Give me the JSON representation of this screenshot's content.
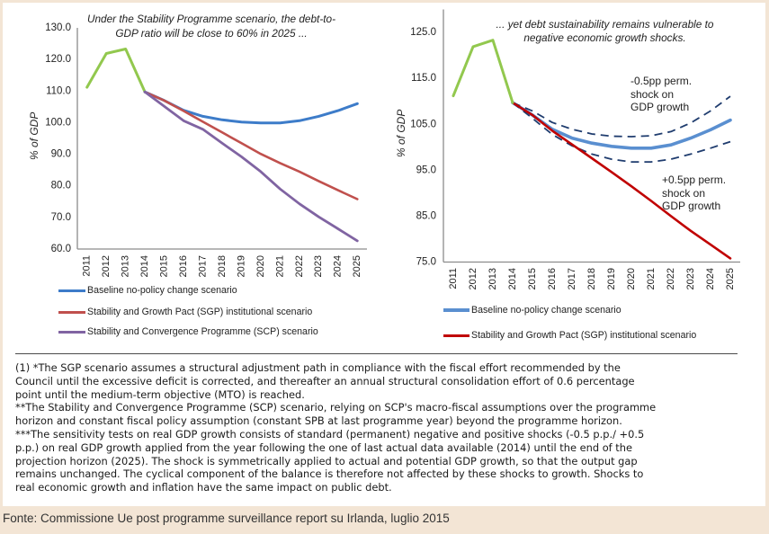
{
  "chart_data": [
    {
      "type": "line",
      "title_lines": [
        "Under the Stability Programme scenario,  the debt-to-",
        "GDP ratio will be close to 60% in 2025 ..."
      ],
      "xlabel": "",
      "ylabel": "% of GDP",
      "ylim": [
        60,
        130
      ],
      "yticks": [
        60,
        70,
        80,
        90,
        100,
        110,
        120,
        130
      ],
      "ytick_labels": [
        "60.0",
        "70.0",
        "80.0",
        "90.0",
        "100.0",
        "110.0",
        "120.0",
        "130.0"
      ],
      "x": [
        "2011",
        "2012",
        "2013",
        "2014",
        "2015",
        "2016",
        "2017",
        "2018",
        "2019",
        "2020",
        "2021",
        "2022",
        "2023",
        "2024",
        "2025"
      ],
      "grid": false,
      "legend_position": "bottom",
      "series": [
        {
          "id": "historical",
          "legend": null,
          "color": "#92c84e",
          "dashed": false,
          "values": [
            111.2,
            121.9,
            123.3,
            109.7,
            null,
            null,
            null,
            null,
            null,
            null,
            null,
            null,
            null,
            null,
            null
          ]
        },
        {
          "id": "baseline",
          "legend": "Baseline no-policy change scenario",
          "color": "#3d7cc9",
          "dashed": false,
          "values": [
            null,
            null,
            null,
            109.7,
            107.0,
            103.9,
            102.0,
            100.9,
            100.2,
            99.9,
            99.9,
            100.6,
            102.0,
            103.8,
            106.0
          ]
        },
        {
          "id": "sgp",
          "legend": "Stability and Growth Pact (SGP) institutional scenario",
          "color": "#c0504d",
          "dashed": false,
          "values": [
            null,
            null,
            null,
            109.7,
            107.0,
            103.7,
            100.3,
            96.9,
            93.5,
            90.1,
            87.2,
            84.5,
            81.5,
            78.6,
            75.8
          ]
        },
        {
          "id": "scp",
          "legend": "Stability and Convergence Programme (SCP) scenario",
          "color": "#8064a2",
          "dashed": false,
          "values": [
            null,
            null,
            null,
            109.7,
            105.2,
            100.6,
            97.9,
            93.5,
            89.2,
            84.5,
            79.0,
            74.3,
            70.2,
            66.4,
            62.6
          ]
        }
      ],
      "annotations": []
    },
    {
      "type": "line",
      "title_lines": [
        "... yet debt sustainability remains vulnerable to",
        "negative economic growth shocks."
      ],
      "xlabel": "",
      "ylabel": "% of GDP",
      "ylim": [
        75,
        130
      ],
      "yticks": [
        75,
        85,
        95,
        105,
        115,
        125
      ],
      "ytick_labels": [
        "75.0",
        "85.0",
        "95.0",
        "105.0",
        "115.0",
        "125.0"
      ],
      "x": [
        "2011",
        "2012",
        "2013",
        "2014",
        "2015",
        "2016",
        "2017",
        "2018",
        "2019",
        "2020",
        "2021",
        "2022",
        "2023",
        "2024",
        "2025"
      ],
      "grid": false,
      "legend_position": "bottom",
      "series": [
        {
          "id": "baseline",
          "legend": "Baseline no-policy change scenario",
          "color": "#5a8fd0",
          "dashed": false,
          "values": [
            null,
            null,
            null,
            109.7,
            107.0,
            103.9,
            102.0,
            100.9,
            100.2,
            99.8,
            99.8,
            100.5,
            102.0,
            103.8,
            105.9
          ]
        },
        {
          "id": "shock_minus_0_5pp",
          "legend": null,
          "color": "#1f3c6e",
          "dashed": true,
          "values": [
            null,
            null,
            null,
            109.7,
            107.9,
            105.4,
            103.9,
            102.9,
            102.4,
            102.3,
            102.5,
            103.4,
            105.3,
            107.9,
            111.1
          ]
        },
        {
          "id": "shock_plus_0_5pp",
          "legend": null,
          "color": "#1f3c6e",
          "dashed": true,
          "values": [
            null,
            null,
            null,
            109.7,
            106.3,
            102.8,
            100.3,
            98.5,
            97.4,
            96.8,
            96.8,
            97.4,
            98.5,
            99.8,
            101.2
          ]
        },
        {
          "id": "sgp",
          "legend": "Stability and Growth Pact (SGP) institutional scenario",
          "color": "#c00000",
          "dashed": false,
          "values": [
            null,
            null,
            null,
            109.7,
            107.0,
            103.6,
            100.6,
            97.6,
            94.6,
            91.5,
            88.3,
            85.0,
            81.8,
            78.8,
            75.8
          ]
        },
        {
          "id": "historical",
          "legend": null,
          "color": "#92c84e",
          "dashed": false,
          "values": [
            111.2,
            121.9,
            123.3,
            109.7,
            null,
            null,
            null,
            null,
            null,
            null,
            null,
            null,
            null,
            null,
            null
          ]
        }
      ],
      "annotations": [
        {
          "lines": [
            "-0.5pp perm.",
            "shock on",
            "GDP growth"
          ]
        },
        {
          "lines": [
            "+0.5pp perm.",
            "shock on",
            "GDP growth"
          ]
        }
      ]
    }
  ],
  "notes": {
    "lines": [
      "(1) *The SGP scenario assumes a structural adjustment path in compliance with the fiscal effort recommended by the",
      "Council until the excessive deficit is corrected, and thereafter an annual structural consolidation effort of 0.6 percentage",
      "point until the medium-term objective (MTO) is reached.",
      "**The Stability and Convergence Programme (SCP) scenario, relying on SCP's macro-fiscal assumptions over the programme",
      "horizon and constant fiscal policy assumption (constant SPB at last programme year) beyond the programme horizon.",
      "***The sensitivity tests on real GDP growth consists of standard (permanent) negative and positive shocks (-0.5 p.p./ +0.5",
      "p.p.) on real GDP growth applied from the year following the one of last actual data available (2014) until the end of the",
      "projection horizon (2025). The shock is symmetrically applied to actual and potential GDP growth, so that the output gap",
      "remains unchanged. The cyclical component of the balance is therefore not affected by these shocks to growth.  Shocks to",
      "real economic growth and inflation have the same impact on public debt."
    ]
  },
  "footer": {
    "source": "Fonte: Commissione Ue post programme surveillance report su Irlanda, luglio 2015"
  }
}
